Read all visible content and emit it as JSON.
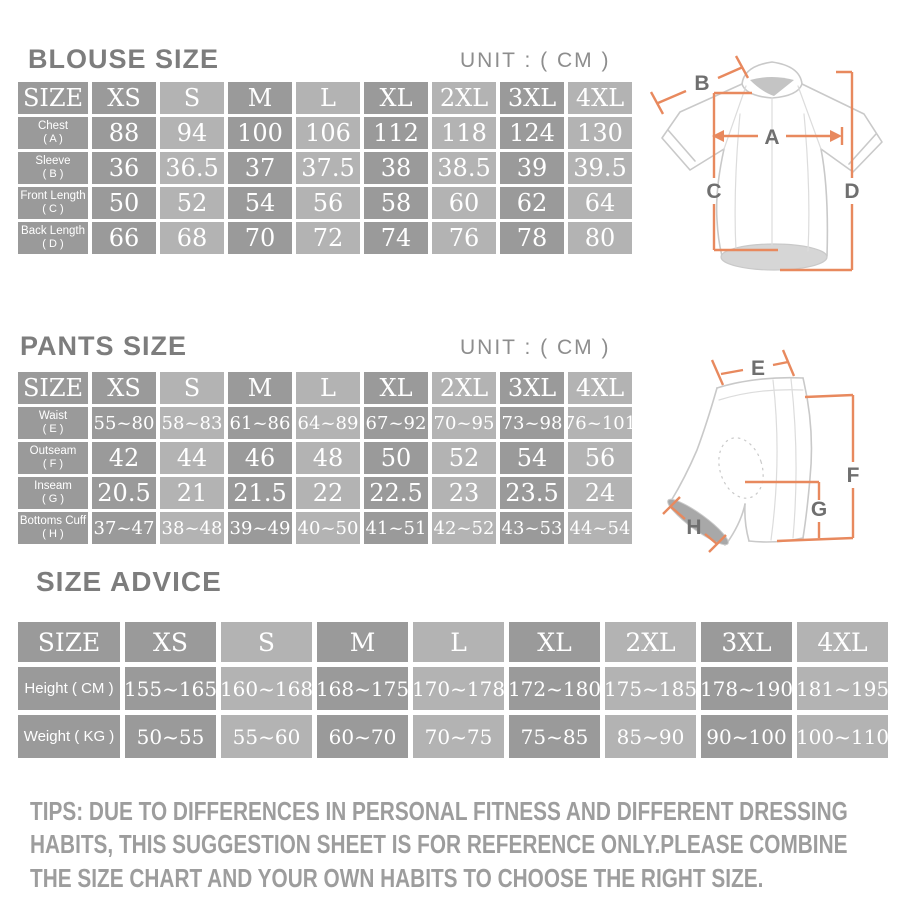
{
  "colors": {
    "cell_dark": "#9a9a9a",
    "cell_light": "#b3b3b3",
    "cell_text": "#ffffff",
    "title": "#7d7d7d",
    "unit": "#8d8d8d",
    "tips": "#9d9d9d",
    "garment_line": "#c9c9c9",
    "seam_line": "#dcdcdc",
    "garment_shade": "#c4c4c4",
    "hem_shade": "#d6d6d6",
    "cuff_shade": "#a8a8a8",
    "arrow": "#e8895e",
    "arrow_label": "#6f6f6f"
  },
  "blouse": {
    "title": "BLOUSE SIZE",
    "unit": "UNIT : ( CM )",
    "header": [
      "SIZE",
      "XS",
      "S",
      "M",
      "L",
      "XL",
      "2XL",
      "3XL",
      "4XL"
    ],
    "rows": [
      {
        "label": "Chest",
        "sub": "( A )",
        "values": [
          "88",
          "94",
          "100",
          "106",
          "112",
          "118",
          "124",
          "130"
        ]
      },
      {
        "label": "Sleeve",
        "sub": "( B )",
        "values": [
          "36",
          "36.5",
          "37",
          "37.5",
          "38",
          "38.5",
          "39",
          "39.5"
        ]
      },
      {
        "label": "Front Length",
        "sub": "( C )",
        "values": [
          "50",
          "52",
          "54",
          "56",
          "58",
          "60",
          "62",
          "64"
        ]
      },
      {
        "label": "Back Length",
        "sub": "( D )",
        "values": [
          "66",
          "68",
          "70",
          "72",
          "74",
          "76",
          "78",
          "80"
        ]
      }
    ]
  },
  "pants": {
    "title": "PANTS SIZE",
    "unit": "UNIT : ( CM )",
    "header": [
      "SIZE",
      "XS",
      "S",
      "M",
      "L",
      "XL",
      "2XL",
      "3XL",
      "4XL"
    ],
    "rows": [
      {
        "label": "Waist",
        "sub": "( E )",
        "values": [
          "55~80",
          "58~83",
          "61~86",
          "64~89",
          "67~92",
          "70~95",
          "73~98",
          "76~101"
        ]
      },
      {
        "label": "Outseam",
        "sub": "( F )",
        "values": [
          "42",
          "44",
          "46",
          "48",
          "50",
          "52",
          "54",
          "56"
        ]
      },
      {
        "label": "Inseam",
        "sub": "( G )",
        "values": [
          "20.5",
          "21",
          "21.5",
          "22",
          "22.5",
          "23",
          "23.5",
          "24"
        ]
      },
      {
        "label": "Bottoms Cuff",
        "sub": "( H )",
        "values": [
          "37~47",
          "38~48",
          "39~49",
          "40~50",
          "41~51",
          "42~52",
          "43~53",
          "44~54"
        ]
      }
    ]
  },
  "advice": {
    "title": "SIZE ADVICE",
    "header": [
      "SIZE",
      "XS",
      "S",
      "M",
      "L",
      "XL",
      "2XL",
      "3XL",
      "4XL"
    ],
    "rows": [
      {
        "label": "Height ( CM )",
        "values": [
          "155~165",
          "160~168",
          "168~175",
          "170~178",
          "172~180",
          "175~185",
          "178~190",
          "181~195"
        ]
      },
      {
        "label": "Weight ( KG )",
        "values": [
          "50~55",
          "55~60",
          "60~70",
          "70~75",
          "75~85",
          "85~90",
          "90~100",
          "100~110"
        ]
      }
    ]
  },
  "tips": {
    "lines": [
      "TIPS: DUE TO DIFFERENCES IN PERSONAL FITNESS AND DIFFERENT DRESSING",
      "HABITS, THIS SUGGESTION SHEET IS FOR REFERENCE ONLY.PLEASE COMBINE",
      "THE SIZE CHART AND YOUR OWN HABITS TO CHOOSE THE RIGHT SIZE."
    ]
  },
  "diagrams": {
    "jersey": {
      "labels": [
        "A",
        "B",
        "C",
        "D"
      ]
    },
    "shorts": {
      "labels": [
        "E",
        "F",
        "G",
        "H"
      ]
    }
  }
}
